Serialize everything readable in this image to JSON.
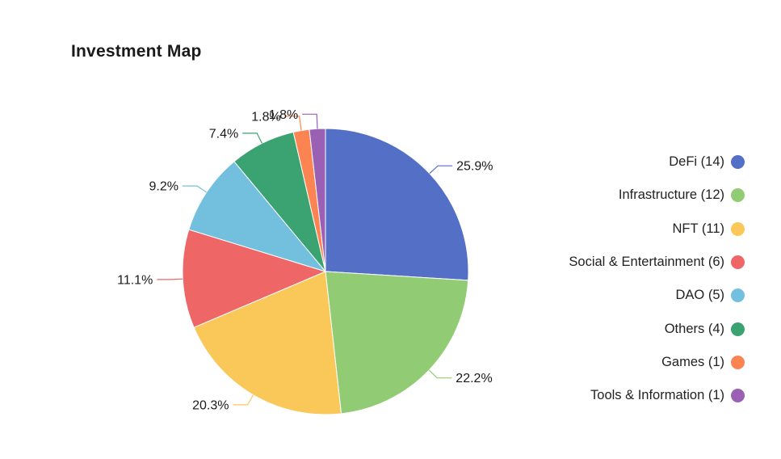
{
  "chart_data": {
    "type": "pie",
    "title": "Investment Map",
    "slices": [
      {
        "label": "DeFi (14)",
        "value": 25.9,
        "display": "25.9%",
        "color": "#5470c6"
      },
      {
        "label": "Infrastructure (12)",
        "value": 22.2,
        "display": "22.2%",
        "color": "#91cc75"
      },
      {
        "label": "NFT (11)",
        "value": 20.3,
        "display": "20.3%",
        "color": "#fac858"
      },
      {
        "label": "Social & Entertainment (6)",
        "value": 11.1,
        "display": "11.1%",
        "color": "#ee6666"
      },
      {
        "label": "DAO (5)",
        "value": 9.2,
        "display": "9.2%",
        "color": "#73c0de"
      },
      {
        "label": "Others (4)",
        "value": 7.4,
        "display": "7.4%",
        "color": "#3ba272"
      },
      {
        "label": "Games (1)",
        "value": 1.8,
        "display": "1.8%",
        "color": "#fc8452"
      },
      {
        "label": "Tools & Information (1)",
        "value": 1.8,
        "display": "1.8%",
        "color": "#9a60b4"
      }
    ],
    "legend_position": "right"
  }
}
